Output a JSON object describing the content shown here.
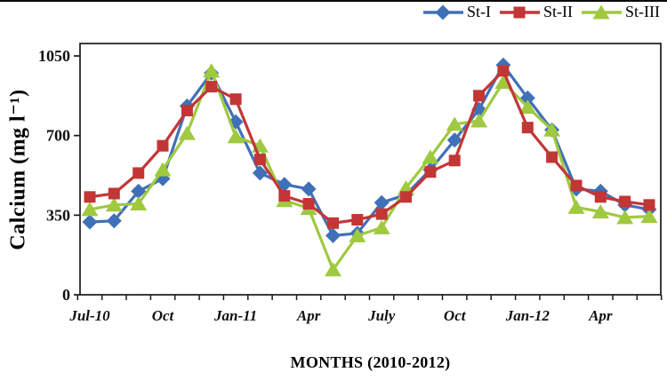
{
  "chart_data": {
    "type": "line",
    "title": "",
    "xlabel": "MONTHS (2010-2012)",
    "ylabel": "Calcium (mg l⁻¹)",
    "ylim": [
      0,
      1050
    ],
    "yticks": [
      0,
      350,
      700,
      1050
    ],
    "grid": false,
    "legend_position": "top-right",
    "categories": [
      "Jul-10",
      "Aug-10",
      "Sep-10",
      "Oct-10",
      "Nov-10",
      "Dec-10",
      "Jan-11",
      "Feb-11",
      "Mar-11",
      "Apr-11",
      "May-11",
      "Jun-11",
      "Jul-11",
      "Aug-11",
      "Sep-11",
      "Oct-11",
      "Nov-11",
      "Dec-11",
      "Jan-12",
      "Feb-12",
      "Mar-12",
      "Apr-12",
      "May-12",
      "Jun-12"
    ],
    "x_tick_labels": [
      "Jul-10",
      "Oct",
      "Jan-11",
      "Apr",
      "July",
      "Oct",
      "Jan-12",
      "Apr"
    ],
    "x_label_indices": [
      0,
      3,
      6,
      9,
      12,
      15,
      18,
      21
    ],
    "series": [
      {
        "name": "St-I",
        "marker": "diamond",
        "color": "#4070b8",
        "values": [
          320,
          325,
          455,
          510,
          830,
          975,
          760,
          535,
          485,
          465,
          260,
          270,
          405,
          440,
          550,
          680,
          815,
          1010,
          865,
          725,
          465,
          455,
          395,
          375
        ]
      },
      {
        "name": "St-II",
        "marker": "square",
        "color": "#c23636",
        "values": [
          430,
          445,
          535,
          655,
          810,
          915,
          860,
          595,
          435,
          400,
          315,
          330,
          355,
          430,
          540,
          590,
          875,
          985,
          735,
          605,
          480,
          430,
          410,
          395
        ]
      },
      {
        "name": "St-III",
        "marker": "triangle",
        "color": "#9fc93f",
        "values": [
          375,
          395,
          400,
          550,
          710,
          985,
          695,
          655,
          415,
          380,
          110,
          260,
          295,
          470,
          605,
          750,
          765,
          935,
          825,
          725,
          385,
          365,
          340,
          345
        ]
      }
    ]
  }
}
